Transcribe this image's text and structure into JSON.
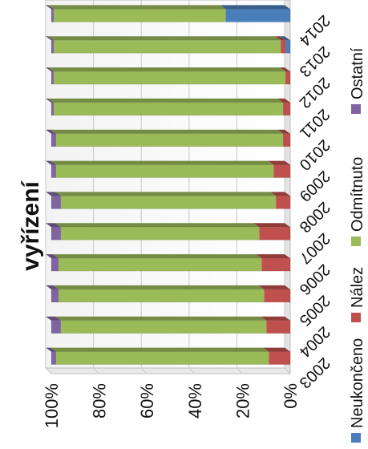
{
  "chart_data": {
    "type": "bar",
    "stacked": "percent",
    "orientation": "horizontal",
    "rotation": "rotated 90° clockwise",
    "title": "vyřízení",
    "categories": [
      "2003",
      "2004",
      "2005",
      "2006",
      "2007",
      "2008",
      "2009",
      "2010",
      "2011",
      "2012",
      "2013",
      "2014"
    ],
    "series": [
      {
        "name": "Neukončeno",
        "color": "#4A7EBB",
        "values": [
          0,
          0,
          0,
          0,
          0,
          0,
          0,
          0,
          0,
          0,
          2,
          27
        ]
      },
      {
        "name": "Nález",
        "color": "#C0504D",
        "values": [
          9,
          10,
          11,
          12,
          13,
          6,
          7,
          3,
          3,
          2,
          2,
          0
        ]
      },
      {
        "name": "Odmítnuto",
        "color": "#9BBB59",
        "values": [
          89,
          86,
          86,
          85,
          83,
          90,
          91,
          95,
          96,
          97,
          95,
          72
        ]
      },
      {
        "name": "Ostatní",
        "color": "#8064A2",
        "values": [
          2,
          4,
          3,
          3,
          4,
          4,
          2,
          2,
          1,
          1,
          1,
          1
        ]
      }
    ],
    "value_axis": {
      "ticks": [
        "0%",
        "20%",
        "40%",
        "60%",
        "80%",
        "100%"
      ],
      "range": [
        0,
        100
      ]
    },
    "grid": true,
    "legend_position": "bottom"
  }
}
